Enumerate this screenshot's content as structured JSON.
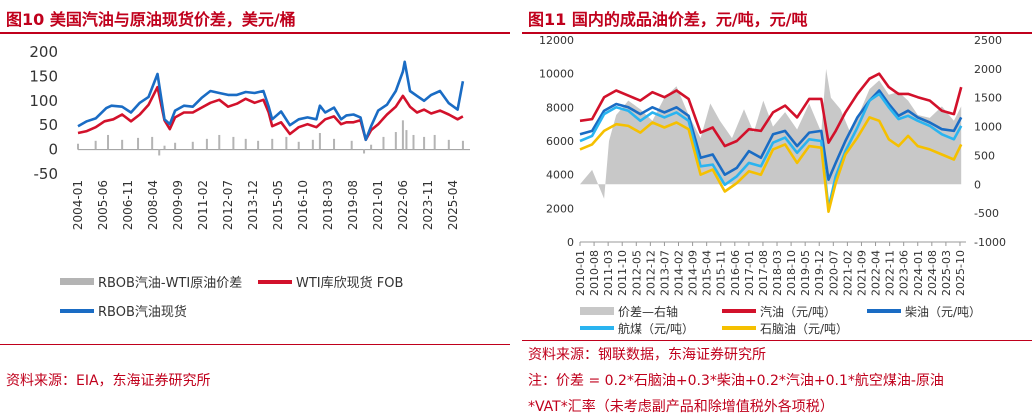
{
  "left": {
    "title": "图10  美国汽油与原油现货价差，美元/桶",
    "source": "资料来源：EIA，东海证券研究所",
    "chart_data": {
      "type": "line",
      "yticks": [
        -50,
        0,
        50,
        100,
        150,
        200
      ],
      "ylim": [
        -50,
        200
      ],
      "xticks": [
        "2004-01",
        "2005-06",
        "2006-11",
        "2008-04",
        "2009-09",
        "2011-02",
        "2012-07",
        "2013-12",
        "2015-05",
        "2016-10",
        "2018-03",
        "2019-08",
        "2021-01",
        "2022-06",
        "2023-11",
        "2025-04"
      ],
      "legend": [
        {
          "name": "RBOB汽油-WTI原油价差",
          "color": "#b4b4b4",
          "kind": "bar"
        },
        {
          "name": "WTI库欣现货 FOB",
          "color": "#d2112b",
          "kind": "line"
        },
        {
          "name": "RBOB汽油现货",
          "color": "#1a6cc4",
          "kind": "line"
        }
      ],
      "series": [
        {
          "name": "WTI库欣现货 FOB",
          "color": "#d2112b",
          "x": [
            2004.0,
            2004.5,
            2005.0,
            2005.5,
            2006.0,
            2006.5,
            2007.0,
            2007.5,
            2008.0,
            2008.5,
            2008.9,
            2009.2,
            2009.5,
            2010.0,
            2010.5,
            2011.0,
            2011.5,
            2012.0,
            2012.5,
            2013.0,
            2013.5,
            2014.0,
            2014.5,
            2014.8,
            2015.0,
            2015.5,
            2016.0,
            2016.5,
            2017.0,
            2017.5,
            2018.0,
            2018.5,
            2018.9,
            2019.2,
            2019.6,
            2020.0,
            2020.3,
            2020.6,
            2021.0,
            2021.5,
            2022.0,
            2022.4,
            2022.8,
            2023.2,
            2023.6,
            2024.0,
            2024.5,
            2025.0,
            2025.5,
            2025.8
          ],
          "y": [
            34,
            38,
            46,
            58,
            62,
            72,
            58,
            72,
            92,
            128,
            60,
            42,
            66,
            76,
            76,
            86,
            96,
            102,
            88,
            94,
            104,
            96,
            102,
            76,
            48,
            56,
            32,
            46,
            52,
            46,
            62,
            68,
            52,
            56,
            56,
            60,
            20,
            40,
            52,
            72,
            88,
            110,
            88,
            76,
            82,
            74,
            80,
            72,
            62,
            68
          ]
        },
        {
          "name": "RBOB汽油现货",
          "color": "#1a6cc4",
          "x": [
            2004.0,
            2004.5,
            2005.0,
            2005.6,
            2005.9,
            2006.5,
            2007.0,
            2007.5,
            2008.0,
            2008.5,
            2008.9,
            2009.2,
            2009.5,
            2010.0,
            2010.5,
            2011.0,
            2011.5,
            2012.0,
            2012.5,
            2013.0,
            2013.5,
            2014.0,
            2014.5,
            2014.8,
            2015.0,
            2015.5,
            2016.0,
            2016.5,
            2017.0,
            2017.5,
            2017.7,
            2018.0,
            2018.5,
            2018.9,
            2019.2,
            2019.6,
            2020.0,
            2020.3,
            2020.6,
            2021.0,
            2021.5,
            2022.0,
            2022.4,
            2022.5,
            2022.8,
            2023.2,
            2023.6,
            2024.0,
            2024.5,
            2025.0,
            2025.5,
            2025.8
          ],
          "y": [
            48,
            58,
            64,
            85,
            90,
            88,
            76,
            96,
            108,
            155,
            62,
            52,
            80,
            90,
            88,
            106,
            120,
            116,
            112,
            112,
            118,
            116,
            120,
            88,
            62,
            78,
            50,
            62,
            66,
            62,
            90,
            76,
            86,
            62,
            70,
            72,
            66,
            20,
            48,
            80,
            92,
            120,
            160,
            180,
            120,
            110,
            100,
            112,
            120,
            95,
            82,
            140
          ]
        }
      ],
      "bars": {
        "name": "RBOB汽油-WTI原油价差",
        "color": "#b4b4b4",
        "x": [
          2004.0,
          2005.0,
          2005.7,
          2006.5,
          2007.4,
          2008.2,
          2008.6,
          2008.9,
          2009.5,
          2010.5,
          2011.3,
          2012.0,
          2012.8,
          2013.5,
          2014.2,
          2015.0,
          2015.8,
          2016.5,
          2017.3,
          2017.7,
          2018.5,
          2019.5,
          2020.2,
          2020.6,
          2021.3,
          2022.0,
          2022.4,
          2022.6,
          2023.0,
          2023.6,
          2024.2,
          2025.0,
          2025.8
        ],
        "y": [
          12,
          18,
          30,
          20,
          24,
          26,
          -12,
          8,
          14,
          16,
          22,
          30,
          26,
          22,
          18,
          22,
          26,
          16,
          20,
          34,
          22,
          18,
          -8,
          10,
          26,
          36,
          60,
          40,
          30,
          26,
          30,
          20,
          18
        ]
      }
    }
  },
  "right": {
    "title": "图11  国内的成品油价差，元/吨，元/吨",
    "source": "资料来源：钢联数据，东海证券研究所",
    "note1": "注：价差 = 0.2*石脑油+0.3*柴油+0.2*汽油+0.1*航空煤油-原油",
    "note2": "*VAT*汇率（未考虑副产品和除增值税外各项税）",
    "chart_data": {
      "type": "line",
      "yticks_left": [
        0,
        2000,
        4000,
        6000,
        8000,
        10000,
        12000
      ],
      "ylim_left": [
        0,
        12000
      ],
      "yticks_right": [
        -1000,
        -500,
        0,
        500,
        1000,
        1500,
        2000,
        2500
      ],
      "ylim_right": [
        -1000,
        2500
      ],
      "xticks": [
        "2010-01",
        "2010-08",
        "2011-03",
        "2011-10",
        "2012-05",
        "2012-12",
        "2013-07",
        "2014-02",
        "2014-09",
        "2015-04",
        "2015-11",
        "2016-06",
        "2017-01",
        "2017-08",
        "2018-03",
        "2018-10",
        "2019-05",
        "2019-12",
        "2020-07",
        "2021-02",
        "2021-09",
        "2022-04",
        "2022-11",
        "2023-06",
        "2024-01",
        "2024-08",
        "2025-03",
        "2025-10"
      ],
      "legend": [
        {
          "name": "价差—右轴",
          "color": "#c8c8c8",
          "kind": "area"
        },
        {
          "name": "汽油（元/吨）",
          "color": "#d2112b",
          "kind": "line"
        },
        {
          "name": "柴油（元/吨）",
          "color": "#1a6cc4",
          "kind": "line"
        },
        {
          "name": "航煤（元/吨）",
          "color": "#2ab4f0",
          "kind": "line"
        },
        {
          "name": "石脑油（元/吨）",
          "color": "#f5c000",
          "kind": "line"
        }
      ],
      "area": {
        "name": "价差—右轴",
        "color": "#c8c8c8",
        "x": [
          2010.0,
          2010.5,
          2011.0,
          2011.2,
          2011.5,
          2012.0,
          2012.5,
          2013.0,
          2013.5,
          2014.0,
          2014.5,
          2015.0,
          2015.4,
          2015.8,
          2016.3,
          2016.8,
          2017.2,
          2017.6,
          2018.0,
          2018.5,
          2019.0,
          2019.5,
          2020.0,
          2020.2,
          2020.4,
          2020.8,
          2021.2,
          2021.6,
          2022.0,
          2022.4,
          2022.8,
          2023.2,
          2023.6,
          2024.0,
          2024.5,
          2025.0,
          2025.5,
          2025.8
        ],
        "y": [
          0,
          250,
          -250,
          750,
          1200,
          1450,
          1300,
          1100,
          1500,
          1700,
          1200,
          800,
          1400,
          1100,
          800,
          1300,
          900,
          1450,
          1000,
          1250,
          950,
          1400,
          900,
          2000,
          1500,
          1300,
          900,
          1250,
          1650,
          1800,
          1550,
          1600,
          1450,
          1200,
          1150,
          1350,
          1100,
          1350
        ]
      },
      "series": [
        {
          "name": "汽油（元/吨）",
          "color": "#d2112b",
          "x": [
            2010.0,
            2010.5,
            2011.0,
            2011.5,
            2012.0,
            2012.5,
            2013.0,
            2013.5,
            2014.0,
            2014.5,
            2015.0,
            2015.5,
            2016.0,
            2016.5,
            2017.0,
            2017.5,
            2018.0,
            2018.5,
            2019.0,
            2019.5,
            2020.0,
            2020.3,
            2020.6,
            2021.0,
            2021.5,
            2022.0,
            2022.4,
            2022.8,
            2023.2,
            2023.6,
            2024.0,
            2024.5,
            2025.0,
            2025.5,
            2025.8
          ],
          "y": [
            7200,
            7300,
            8600,
            9000,
            8700,
            8400,
            8900,
            8600,
            9000,
            8500,
            6500,
            6800,
            5700,
            6000,
            6700,
            6600,
            7700,
            8100,
            7400,
            8500,
            8500,
            5900,
            6600,
            7700,
            8800,
            9700,
            10000,
            9200,
            8800,
            8800,
            8600,
            8400,
            7800,
            7600,
            9200
          ]
        },
        {
          "name": "柴油（元/吨）",
          "color": "#1a6cc4",
          "x": [
            2010.0,
            2010.5,
            2011.0,
            2011.5,
            2012.0,
            2012.5,
            2013.0,
            2013.5,
            2014.0,
            2014.5,
            2015.0,
            2015.5,
            2016.0,
            2016.5,
            2017.0,
            2017.5,
            2018.0,
            2018.5,
            2019.0,
            2019.5,
            2020.0,
            2020.3,
            2020.6,
            2021.0,
            2021.5,
            2022.0,
            2022.4,
            2022.8,
            2023.2,
            2023.6,
            2024.0,
            2024.5,
            2025.0,
            2025.5,
            2025.8
          ],
          "y": [
            6400,
            6600,
            7800,
            8200,
            8000,
            7600,
            8000,
            7700,
            8000,
            7500,
            5000,
            5200,
            4000,
            4400,
            5400,
            5000,
            6400,
            6600,
            5700,
            6500,
            6600,
            3700,
            4700,
            6000,
            7400,
            8400,
            9000,
            8200,
            7500,
            7800,
            7400,
            7100,
            6700,
            6600,
            7400
          ]
        },
        {
          "name": "航煤（元/吨）",
          "color": "#2ab4f0",
          "x": [
            2010.0,
            2010.5,
            2011.0,
            2011.5,
            2012.0,
            2012.5,
            2013.0,
            2013.5,
            2014.0,
            2014.5,
            2015.0,
            2015.5,
            2016.0,
            2016.5,
            2017.0,
            2017.5,
            2018.0,
            2018.5,
            2019.0,
            2019.5,
            2020.0,
            2020.3,
            2020.6,
            2021.0,
            2021.5,
            2022.0,
            2022.4,
            2022.8,
            2023.2,
            2023.6,
            2024.0,
            2024.5,
            2025.0,
            2025.5,
            2025.8
          ],
          "y": [
            6000,
            6300,
            7600,
            8000,
            7800,
            7200,
            7700,
            7400,
            7700,
            7200,
            4500,
            4600,
            3400,
            3900,
            4700,
            4500,
            5900,
            6200,
            5300,
            6100,
            6000,
            2000,
            3900,
            5400,
            6800,
            8400,
            8800,
            8000,
            7300,
            7500,
            7200,
            6900,
            6400,
            6100,
            6900
          ]
        },
        {
          "name": "石脑油（元/吨）",
          "color": "#f5c000",
          "x": [
            2010.0,
            2010.5,
            2011.0,
            2011.5,
            2012.0,
            2012.5,
            2013.0,
            2013.5,
            2014.0,
            2014.5,
            2015.0,
            2015.5,
            2016.0,
            2016.5,
            2017.0,
            2017.5,
            2018.0,
            2018.5,
            2019.0,
            2019.5,
            2020.0,
            2020.3,
            2020.6,
            2021.0,
            2021.5,
            2022.0,
            2022.4,
            2022.8,
            2023.2,
            2023.6,
            2024.0,
            2024.5,
            2025.0,
            2025.5,
            2025.8
          ],
          "y": [
            5500,
            5800,
            6600,
            7000,
            6900,
            6500,
            7100,
            6800,
            7100,
            6700,
            4000,
            4300,
            3000,
            3500,
            4200,
            4000,
            5500,
            5800,
            4700,
            5700,
            5600,
            1800,
            3500,
            5200,
            6200,
            7400,
            7200,
            6100,
            5700,
            6300,
            5700,
            5500,
            5200,
            4900,
            5800
          ]
        }
      ]
    }
  }
}
